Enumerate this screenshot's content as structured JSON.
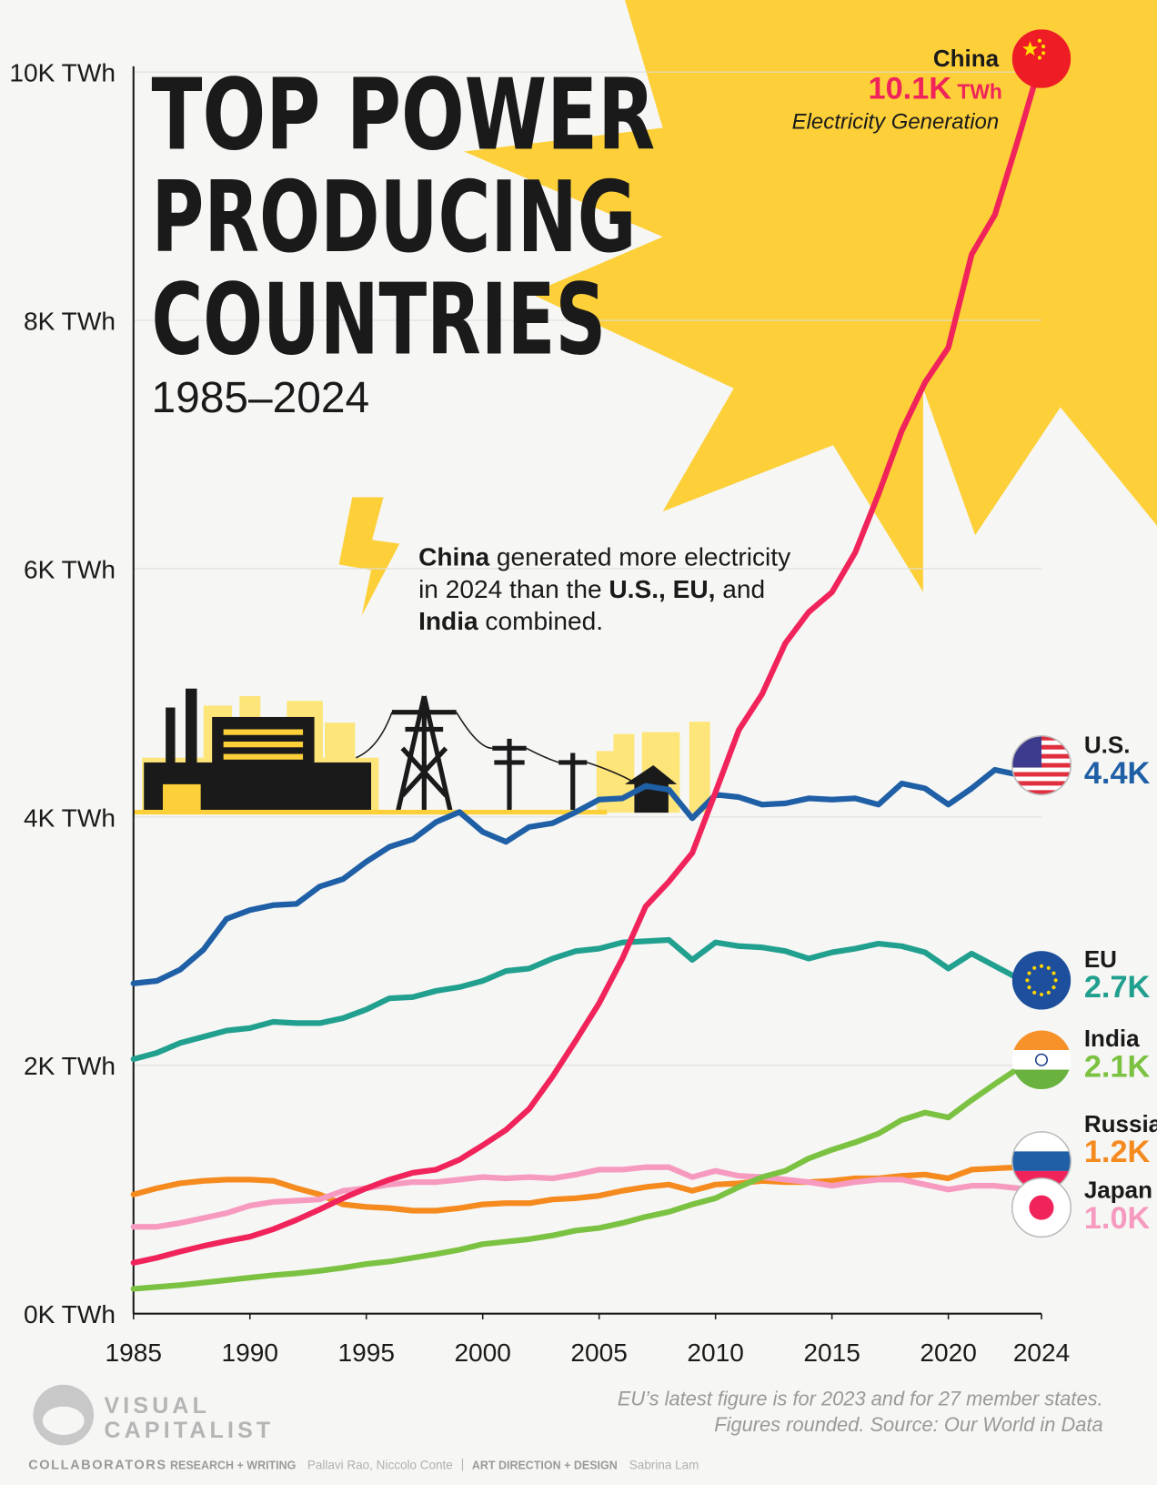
{
  "chart_data": {
    "type": "line",
    "title": [
      "TOP POWER",
      "PRODUCING",
      "COUNTRIES"
    ],
    "subtitle": "1985–2024",
    "x": [
      1985,
      1986,
      1987,
      1988,
      1989,
      1990,
      1991,
      1992,
      1993,
      1994,
      1995,
      1996,
      1997,
      1998,
      1999,
      2000,
      2001,
      2002,
      2003,
      2004,
      2005,
      2006,
      2007,
      2008,
      2009,
      2010,
      2011,
      2012,
      2013,
      2014,
      2015,
      2016,
      2017,
      2018,
      2019,
      2020,
      2021,
      2022,
      2023,
      2024
    ],
    "xlim": [
      1985,
      2024
    ],
    "xticks": [
      1985,
      1990,
      1995,
      2000,
      2005,
      2010,
      2015,
      2020,
      2024
    ],
    "ylim": [
      0,
      10000
    ],
    "yticks": [
      {
        "value": 0,
        "label": "0K TWh"
      },
      {
        "value": 2000,
        "label": "2K TWh"
      },
      {
        "value": 4000,
        "label": "4K TWh"
      },
      {
        "value": 6000,
        "label": "6K TWh"
      },
      {
        "value": 8000,
        "label": "8K TWh"
      },
      {
        "value": 10000,
        "label": "10K TWh"
      }
    ],
    "grid": true,
    "series": [
      {
        "name": "China",
        "color": "#f0245a",
        "values": [
          410,
          450,
          500,
          545,
          585,
          620,
          680,
          755,
          840,
          930,
          1010,
          1080,
          1135,
          1160,
          1240,
          1356,
          1480,
          1650,
          1910,
          2200,
          2500,
          2860,
          3280,
          3480,
          3710,
          4200,
          4700,
          4990,
          5400,
          5650,
          5810,
          6130,
          6600,
          7110,
          7500,
          7780,
          8530,
          8850,
          9460,
          10100
        ],
        "value_labels": [
          null,
          null,
          null,
          null,
          null,
          null,
          null,
          null,
          null,
          null,
          null,
          null,
          null,
          null,
          null,
          null,
          null,
          null,
          null,
          null,
          null,
          null,
          null,
          null,
          null,
          null,
          null,
          null,
          null,
          null,
          null,
          null,
          null,
          null,
          null,
          null,
          null,
          null,
          null,
          "10.1K"
        ],
        "unit": "TWh",
        "note": "Electricity Generation"
      },
      {
        "name": "U.S.",
        "color": "#1f5fa6",
        "values": [
          2660,
          2680,
          2770,
          2930,
          3180,
          3250,
          3290,
          3300,
          3440,
          3500,
          3640,
          3760,
          3820,
          3960,
          4040,
          3880,
          3800,
          3920,
          3950,
          4040,
          4140,
          4150,
          4250,
          4220,
          3990,
          4180,
          4160,
          4100,
          4110,
          4150,
          4140,
          4150,
          4100,
          4270,
          4230,
          4100,
          4230,
          4380,
          4340,
          4400
        ],
        "value_labels": [
          null,
          null,
          null,
          null,
          null,
          null,
          null,
          null,
          null,
          null,
          null,
          null,
          null,
          null,
          null,
          null,
          null,
          null,
          null,
          null,
          null,
          null,
          null,
          null,
          null,
          null,
          null,
          null,
          null,
          null,
          null,
          null,
          null,
          null,
          null,
          null,
          null,
          null,
          null,
          "4.4K"
        ]
      },
      {
        "name": "EU",
        "color": "#21a08f",
        "values": [
          2050,
          2100,
          2180,
          2230,
          2280,
          2300,
          2350,
          2340,
          2340,
          2380,
          2450,
          2540,
          2550,
          2600,
          2630,
          2680,
          2760,
          2780,
          2860,
          2920,
          2940,
          2990,
          3000,
          3010,
          2850,
          2990,
          2960,
          2950,
          2920,
          2860,
          2910,
          2940,
          2980,
          2960,
          2910,
          2780,
          2900,
          2800,
          2700,
          null
        ],
        "value_labels": [
          null,
          null,
          null,
          null,
          null,
          null,
          null,
          null,
          null,
          null,
          null,
          null,
          null,
          null,
          null,
          null,
          null,
          null,
          null,
          null,
          null,
          null,
          null,
          null,
          null,
          null,
          null,
          null,
          null,
          null,
          null,
          null,
          null,
          null,
          null,
          null,
          null,
          null,
          "2.7K",
          null
        ]
      },
      {
        "name": "India",
        "color": "#7cc242",
        "values": [
          200,
          215,
          230,
          250,
          270,
          290,
          310,
          325,
          345,
          370,
          400,
          420,
          450,
          480,
          515,
          560,
          580,
          600,
          630,
          670,
          690,
          730,
          780,
          820,
          880,
          930,
          1020,
          1100,
          1150,
          1250,
          1320,
          1380,
          1450,
          1560,
          1620,
          1580,
          1720,
          1850,
          1975,
          2080
        ],
        "value_labels": [
          null,
          null,
          null,
          null,
          null,
          null,
          null,
          null,
          null,
          null,
          null,
          null,
          null,
          null,
          null,
          null,
          null,
          null,
          null,
          null,
          null,
          null,
          null,
          null,
          null,
          null,
          null,
          null,
          null,
          null,
          null,
          null,
          null,
          null,
          null,
          null,
          null,
          null,
          null,
          "2.1K"
        ]
      },
      {
        "name": "Russia",
        "color": "#f58a1f",
        "values": [
          960,
          1010,
          1050,
          1070,
          1080,
          1080,
          1070,
          1010,
          960,
          880,
          860,
          850,
          830,
          830,
          850,
          880,
          890,
          890,
          920,
          930,
          950,
          990,
          1020,
          1040,
          990,
          1040,
          1050,
          1070,
          1060,
          1060,
          1070,
          1090,
          1090,
          1110,
          1120,
          1090,
          1160,
          1170,
          1180,
          1200
        ],
        "value_labels": [
          null,
          null,
          null,
          null,
          null,
          null,
          null,
          null,
          null,
          null,
          null,
          null,
          null,
          null,
          null,
          null,
          null,
          null,
          null,
          null,
          null,
          null,
          null,
          null,
          null,
          null,
          null,
          null,
          null,
          null,
          null,
          null,
          null,
          null,
          null,
          null,
          null,
          null,
          null,
          "1.2K"
        ]
      },
      {
        "name": "Japan",
        "color": "#f79ac0",
        "values": [
          700,
          700,
          730,
          770,
          810,
          870,
          900,
          910,
          920,
          990,
          1010,
          1040,
          1060,
          1060,
          1080,
          1100,
          1090,
          1100,
          1090,
          1120,
          1160,
          1160,
          1180,
          1180,
          1100,
          1150,
          1110,
          1100,
          1080,
          1060,
          1030,
          1060,
          1080,
          1080,
          1040,
          1000,
          1030,
          1030,
          1010,
          1000
        ],
        "value_labels": [
          null,
          null,
          null,
          null,
          null,
          null,
          null,
          null,
          null,
          null,
          null,
          null,
          null,
          null,
          null,
          null,
          null,
          null,
          null,
          null,
          null,
          null,
          null,
          null,
          null,
          null,
          null,
          null,
          null,
          null,
          null,
          null,
          null,
          null,
          null,
          null,
          null,
          null,
          null,
          "1.0K"
        ]
      }
    ],
    "annotation": [
      [
        {
          "text": "China",
          "bold": true
        },
        {
          "text": " generated more electricity",
          "bold": false
        }
      ],
      [
        {
          "text": "in 2024 than the ",
          "bold": false
        },
        {
          "text": "U.S., EU,",
          "bold": true
        },
        {
          "text": " and",
          "bold": false
        }
      ],
      [
        {
          "text": "India",
          "bold": true
        },
        {
          "text": " combined.",
          "bold": false
        }
      ]
    ],
    "footnote": [
      "EU’s latest figure is for 2023 and for 27 member states.",
      "Figures rounded. Source: Our World in Data"
    ]
  },
  "footer": {
    "logo": [
      "VISUAL",
      "CAPITALIST"
    ],
    "credits": [
      {
        "role": "COLLABORATORS",
        "names": null
      },
      {
        "role": "RESEARCH + WRITING",
        "names": "Pallavi Rao, Niccolo Conte"
      },
      {
        "role": "ART DIRECTION + DESIGN",
        "names": "Sabrina Lam"
      }
    ]
  }
}
